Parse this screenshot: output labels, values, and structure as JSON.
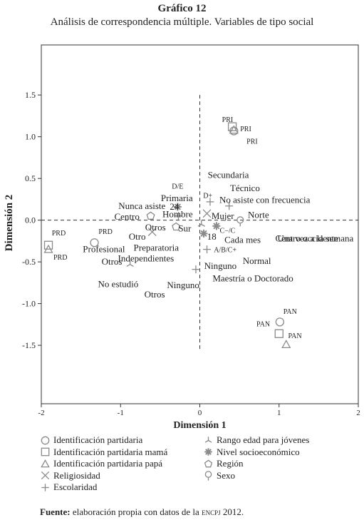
{
  "header": {
    "title": "Gráfico 12",
    "subtitle": "Análisis de correspondencia múltiple. Variables de tipo social"
  },
  "chart_data": {
    "type": "scatter",
    "title": "Gráfico 12",
    "subtitle": "Análisis de correspondencia múltiple. Variables de tipo social",
    "xlabel": "Dimensión 1",
    "ylabel": "Dimensión 2",
    "xlim": [
      -2,
      2
    ],
    "ylim": [
      -2.2,
      2.1
    ],
    "xticks": [
      "-2",
      "-1",
      "0",
      "1",
      "2"
    ],
    "yticks": [
      "1.5",
      "1.0",
      "0.5",
      "0.0",
      "-0.5",
      "-1.0",
      "-1.5"
    ],
    "xtick_values": [
      -2,
      -1,
      0,
      1,
      2
    ],
    "ytick_values": [
      1.5,
      1.0,
      0.5,
      0.0,
      -0.5,
      -1.0,
      -1.5
    ],
    "grid": false,
    "reference_lines": {
      "x": 0,
      "y": 0,
      "style": "dashed"
    },
    "series": [
      {
        "name": "Identificación partidaria",
        "marker": "circle",
        "points": [
          {
            "x": 0.43,
            "y": 1.07,
            "label": "PRI"
          },
          {
            "x": -1.33,
            "y": -0.27,
            "label": "PRD"
          },
          {
            "x": 1.01,
            "y": -1.22,
            "label": "PAN"
          }
        ]
      },
      {
        "name": "Identificación partidaria mamá",
        "marker": "square",
        "points": [
          {
            "x": 0.41,
            "y": 1.12,
            "label": "PRI"
          },
          {
            "x": -1.91,
            "y": -0.3,
            "label": "PRD"
          },
          {
            "x": 1.0,
            "y": -1.36,
            "label": "PAN"
          }
        ]
      },
      {
        "name": "Identificación partidaria papá",
        "marker": "triangle",
        "points": [
          {
            "x": 0.43,
            "y": 1.08,
            "label": "PRI"
          },
          {
            "x": -1.91,
            "y": -0.35,
            "label": "PRD"
          },
          {
            "x": 1.09,
            "y": -1.49,
            "label": "PAN"
          }
        ]
      },
      {
        "name": "Religiosidad",
        "marker": "x",
        "points": [
          {
            "x": 0.09,
            "y": 0.08,
            "label": "Mujer"
          },
          {
            "x": -0.6,
            "y": -0.14,
            "label": "Otro"
          }
        ]
      },
      {
        "name": "Escolaridad",
        "marker": "plus",
        "points": [
          {
            "x": 0.13,
            "y": 0.22,
            "label": "No asiste con frecuencia"
          },
          {
            "x": 0.37,
            "y": 0.17,
            "label": "Técnico"
          },
          {
            "x": 0.09,
            "y": -0.35,
            "label": "A/B/C+"
          },
          {
            "x": -0.05,
            "y": -0.59,
            "label": "Maestría o Doctorado"
          },
          {
            "x": -0.27,
            "y": 0.05,
            "label": "Hombre"
          }
        ]
      },
      {
        "name": "Rango edad para jóvenes",
        "marker": "tri-star",
        "points": [
          {
            "x": 0.02,
            "y": -0.05,
            "label": "Sur"
          },
          {
            "x": -0.88,
            "y": -0.53,
            "label": "Otros"
          }
        ]
      },
      {
        "name": "Nivel socioeconómico",
        "marker": "asterisk",
        "points": [
          {
            "x": -0.28,
            "y": 0.16,
            "label": "D/E"
          },
          {
            "x": 0.21,
            "y": -0.07,
            "label": "C−/C"
          },
          {
            "x": 0.05,
            "y": -0.16,
            "label": "18"
          }
        ]
      },
      {
        "name": "Región",
        "marker": "pentagon",
        "points": [
          {
            "x": -0.62,
            "y": 0.05,
            "label": "Centro"
          },
          {
            "x": -0.3,
            "y": -0.08,
            "label": "Preparatoria"
          }
        ]
      },
      {
        "name": "Sexo",
        "marker": "pin",
        "points": [
          {
            "x": 0.51,
            "y": -0.01,
            "label": "Norte"
          }
        ]
      }
    ],
    "point_labels": [
      {
        "text": "PRI",
        "x": 0.35,
        "y": 1.21
      },
      {
        "text": "PRI",
        "x": 0.58,
        "y": 1.1
      },
      {
        "text": "PRI",
        "x": 0.66,
        "y": 0.95
      },
      {
        "text": "Secundaria",
        "x": 0.36,
        "y": 0.54
      },
      {
        "text": "Técnico",
        "x": 0.57,
        "y": 0.38
      },
      {
        "text": "D+",
        "x": 0.1,
        "y": 0.3
      },
      {
        "text": "No asiste con frecuencia",
        "x": 0.82,
        "y": 0.24
      },
      {
        "text": "D/E",
        "x": -0.28,
        "y": 0.41
      },
      {
        "text": "Primaria",
        "x": -0.29,
        "y": 0.26
      },
      {
        "text": "24",
        "x": -0.32,
        "y": 0.16
      },
      {
        "text": "Nunca asiste",
        "x": -0.73,
        "y": 0.17
      },
      {
        "text": "Hombre",
        "x": -0.28,
        "y": 0.07
      },
      {
        "text": "Mujer",
        "x": 0.29,
        "y": 0.05
      },
      {
        "text": "Norte",
        "x": 0.74,
        "y": 0.06
      },
      {
        "text": "Centro",
        "x": -0.92,
        "y": 0.04
      },
      {
        "text": "Otros",
        "x": -0.56,
        "y": -0.09
      },
      {
        "text": "Sur",
        "x": -0.19,
        "y": -0.1
      },
      {
        "text": "C−/C",
        "x": 0.35,
        "y": -0.12
      },
      {
        "text": "Centro occidente",
        "x": 1.35,
        "y": -0.22
      },
      {
        "text": "Otro",
        "x": -0.79,
        "y": -0.2
      },
      {
        "text": "18",
        "x": 0.15,
        "y": -0.2
      },
      {
        "text": "Cada mes",
        "x": 0.54,
        "y": -0.24
      },
      {
        "text": "Una vez a la semana",
        "x": 1.46,
        "y": -0.22
      },
      {
        "text": "PRD",
        "x": -1.78,
        "y": -0.15
      },
      {
        "text": "PRD",
        "x": -1.19,
        "y": -0.13
      },
      {
        "text": "PRD",
        "x": -1.76,
        "y": -0.44
      },
      {
        "text": "Preparatoria",
        "x": -0.55,
        "y": -0.33
      },
      {
        "text": "Profesional",
        "x": -1.21,
        "y": -0.35
      },
      {
        "text": "A/B/C+",
        "x": 0.32,
        "y": -0.35
      },
      {
        "text": "Independientes",
        "x": -0.68,
        "y": -0.46
      },
      {
        "text": "Normal",
        "x": 0.72,
        "y": -0.49
      },
      {
        "text": "Otros",
        "x": -1.11,
        "y": -0.5
      },
      {
        "text": "Ninguno",
        "x": 0.26,
        "y": -0.55
      },
      {
        "text": "Maestría o Doctorado",
        "x": 0.67,
        "y": -0.7
      },
      {
        "text": "No estudió",
        "x": -1.03,
        "y": -0.77
      },
      {
        "text": "Ninguno",
        "x": -0.21,
        "y": -0.78
      },
      {
        "text": "Otros",
        "x": -0.57,
        "y": -0.89
      },
      {
        "text": "PAN",
        "x": 1.14,
        "y": -1.09
      },
      {
        "text": "PAN",
        "x": 0.8,
        "y": -1.24
      },
      {
        "text": "PAN",
        "x": 1.2,
        "y": -1.38
      }
    ]
  },
  "legend": {
    "left": [
      {
        "marker": "circle",
        "label": "Identificación partidaria"
      },
      {
        "marker": "square",
        "label": "Identificación partidaria mamá"
      },
      {
        "marker": "triangle",
        "label": "Identificación partidaria papá"
      },
      {
        "marker": "x",
        "label": "Religiosidad"
      },
      {
        "marker": "plus",
        "label": "Escolaridad"
      }
    ],
    "right": [
      {
        "marker": "tri-star",
        "label": "Rango edad para jóvenes"
      },
      {
        "marker": "asterisk",
        "label": "Nivel socioeconómico"
      },
      {
        "marker": "pentagon",
        "label": "Región"
      },
      {
        "marker": "pin",
        "label": "Sexo"
      }
    ]
  },
  "source": {
    "label": "Fuente:",
    "text": "elaboración propia con datos de la",
    "acronym": "encpj",
    "year": "2012."
  },
  "colors": {
    "marker": "#8a8a8a",
    "frame": "#333333",
    "text": "#222222"
  }
}
